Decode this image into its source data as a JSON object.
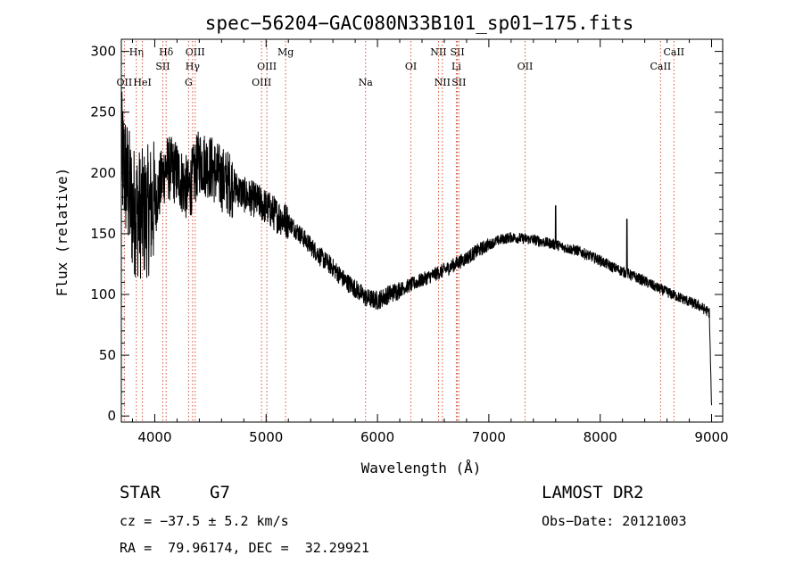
{
  "chart_data": {
    "type": "line",
    "title": "spec−56204−GAC080N33B101_sp01−175.fits",
    "xlabel": "Wavelength (Å)",
    "ylabel": "Flux (relative)",
    "xlim": [
      3700,
      9100
    ],
    "ylim": [
      -5,
      310
    ],
    "xticks": [
      4000,
      5000,
      6000,
      7000,
      8000,
      9000
    ],
    "yticks": [
      0,
      50,
      100,
      150,
      200,
      250,
      300
    ],
    "grid": false,
    "line_color": "#000000",
    "marker_color": "#d4553a",
    "series": [
      {
        "x": [
          3700,
          3800,
          3900,
          4000,
          4100,
          4200,
          4300,
          4400,
          4500,
          4600,
          4700,
          4800,
          4900,
          5000,
          5100,
          5200,
          5300,
          5400,
          5500,
          5600,
          5700,
          5800,
          5900,
          6000,
          6100,
          6200,
          6300,
          6400,
          6500,
          6600,
          6700,
          6800,
          6900,
          7000,
          7100,
          7200,
          7300,
          7400,
          7500,
          7600,
          7700,
          7800,
          7900,
          8000,
          8100,
          8200,
          8300,
          8400,
          8500,
          8600,
          8700,
          8800,
          8900,
          8980,
          9000
        ],
        "y": [
          215,
          170,
          165,
          175,
          205,
          200,
          185,
          210,
          205,
          195,
          190,
          182,
          178,
          172,
          165,
          160,
          150,
          140,
          130,
          122,
          112,
          105,
          97,
          95,
          100,
          104,
          108,
          112,
          116,
          120,
          125,
          130,
          136,
          141,
          145,
          147,
          146,
          145,
          143,
          141,
          138,
          136,
          132,
          128,
          123,
          119,
          115,
          111,
          106,
          102,
          98,
          94,
          90,
          85,
          5
        ]
      }
    ],
    "spikes": [
      {
        "x": 7600,
        "y": 173
      },
      {
        "x": 8240,
        "y": 162
      }
    ],
    "line_markers": [
      {
        "label": "OII",
        "x": 3727,
        "row": 3
      },
      {
        "label": "Hη",
        "x": 3835,
        "row": 1
      },
      {
        "label": "HeI",
        "x": 3889,
        "row": 3
      },
      {
        "label": "Hδ",
        "x": 4102,
        "row": 1
      },
      {
        "label": "SII",
        "x": 4072,
        "row": 2
      },
      {
        "label": "OIII",
        "x": 4363,
        "row": 1
      },
      {
        "label": "Hγ",
        "x": 4340,
        "row": 2
      },
      {
        "label": "G",
        "x": 4304,
        "row": 3
      },
      {
        "label": "Mg",
        "x": 5175,
        "row": 1
      },
      {
        "label": "OIII",
        "x": 5007,
        "row": 2
      },
      {
        "label": "OIII",
        "x": 4959,
        "row": 3
      },
      {
        "label": "Na",
        "x": 5893,
        "row": 3
      },
      {
        "label": "NII",
        "x": 6548,
        "row": 1
      },
      {
        "label": "SII",
        "x": 6717,
        "row": 1
      },
      {
        "label": "OI",
        "x": 6300,
        "row": 2
      },
      {
        "label": "Li",
        "x": 6708,
        "row": 2
      },
      {
        "label": "NII",
        "x": 6583,
        "row": 3
      },
      {
        "label": "SII",
        "x": 6731,
        "row": 3
      },
      {
        "label": "OII",
        "x": 7325,
        "row": 2
      },
      {
        "label": "CaII",
        "x": 8662,
        "row": 1
      },
      {
        "label": "CaII",
        "x": 8542,
        "row": 2
      }
    ]
  },
  "info": {
    "object_class": "STAR",
    "subclass": "G7",
    "redshift": "cz = −37.5 ± 5.2 km/s",
    "coordinates": "RA =  79.96174, DEC =  32.29921",
    "survey": "LAMOST DR2",
    "obs_date": "Obs−Date: 20121003"
  }
}
